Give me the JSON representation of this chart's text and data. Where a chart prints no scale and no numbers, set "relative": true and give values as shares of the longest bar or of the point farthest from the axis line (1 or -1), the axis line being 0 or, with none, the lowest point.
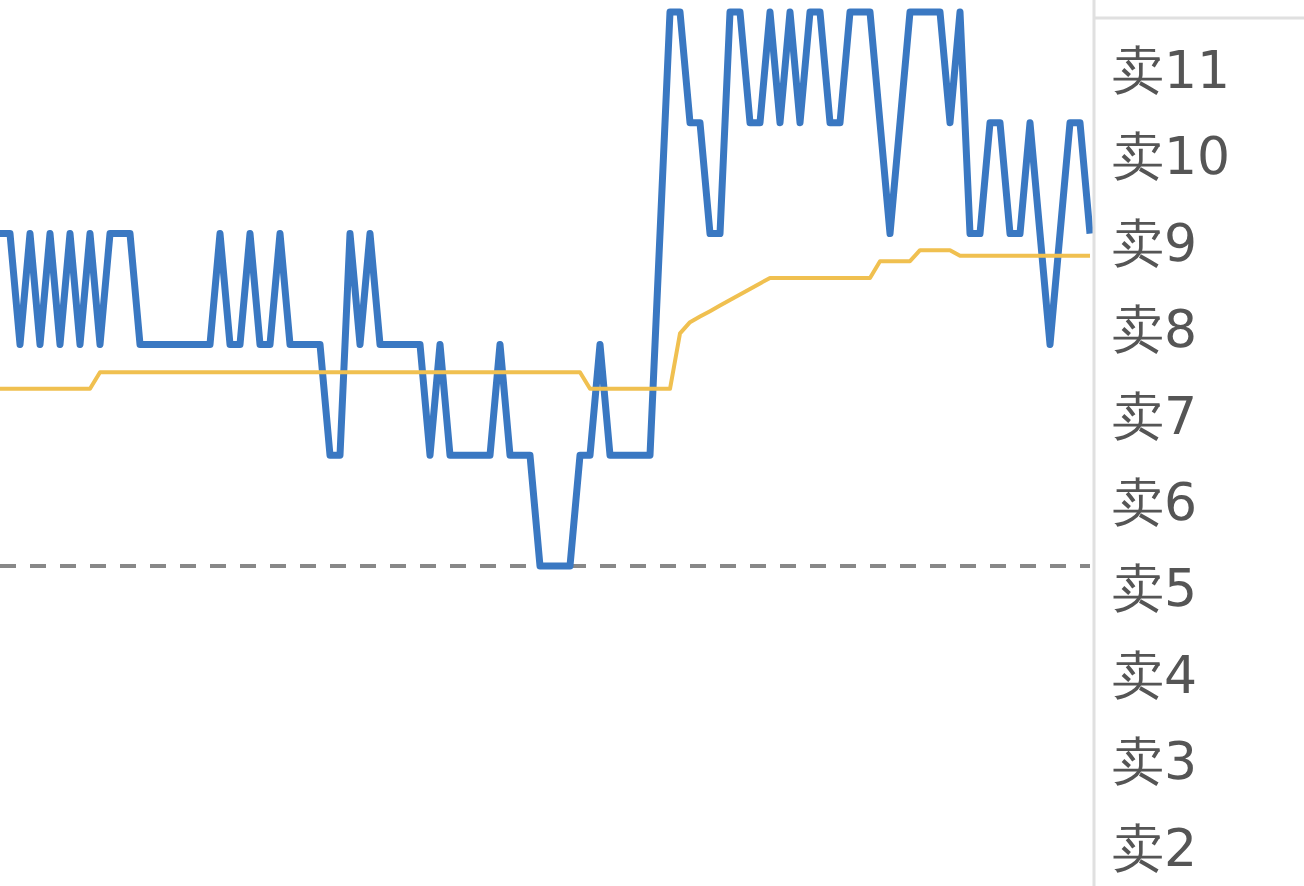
{
  "chart_data": {
    "type": "line",
    "relative": true,
    "categories": [
      null,
      null,
      null,
      null,
      null,
      null,
      null,
      null,
      null,
      null,
      null,
      null,
      null,
      null,
      null,
      null,
      null,
      null,
      null,
      null,
      null,
      null,
      null,
      null,
      null,
      null,
      null,
      null,
      null,
      null,
      null,
      null,
      null,
      null,
      null,
      null,
      null,
      null,
      null,
      null,
      null,
      null,
      null,
      null,
      null,
      null,
      null,
      null,
      null,
      null,
      null,
      null,
      null,
      null,
      null,
      null,
      null,
      null,
      null,
      null,
      null,
      null,
      null,
      null,
      null,
      null,
      null,
      null,
      null,
      null,
      null,
      null,
      null,
      null,
      null,
      null,
      null,
      null,
      null,
      null,
      null,
      null,
      null,
      null,
      null,
      null,
      null,
      null,
      null,
      null,
      null,
      null,
      null,
      null,
      null,
      null,
      null,
      null,
      null,
      null,
      null,
      null,
      null,
      null,
      null,
      null,
      null,
      null,
      null,
      null
    ],
    "series": [
      {
        "color": "#3a78c2",
        "values": [
          0.6,
          0.6,
          0.4,
          0.6,
          0.4,
          0.6,
          0.4,
          0.6,
          0.4,
          0.6,
          0.4,
          0.6,
          0.6,
          0.6,
          0.4,
          0.4,
          0.4,
          0.4,
          0.4,
          0.4,
          0.4,
          0.4,
          0.6,
          0.4,
          0.4,
          0.6,
          0.4,
          0.4,
          0.6,
          0.4,
          0.4,
          0.4,
          0.4,
          0.2,
          0.2,
          0.6,
          0.4,
          0.6,
          0.4,
          0.4,
          0.4,
          0.4,
          0.4,
          0.2,
          0.4,
          0.2,
          0.2,
          0.2,
          0.2,
          0.2,
          0.4,
          0.2,
          0.2,
          0.2,
          0,
          0,
          0,
          0,
          0.2,
          0.2,
          0.4,
          0.2,
          0.2,
          0.2,
          0.2,
          0.2,
          0.6,
          1,
          1,
          0.8,
          0.8,
          0.6,
          0.6,
          1,
          1,
          0.8,
          0.8,
          1,
          0.8,
          1,
          0.8,
          1,
          1,
          0.8,
          0.8,
          1,
          1,
          1,
          0.8,
          0.6,
          0.8,
          1,
          1,
          1,
          1,
          0.8,
          1,
          0.6,
          0.6,
          0.8,
          0.8,
          0.6,
          0.6,
          0.8,
          0.6,
          0.4,
          0.6,
          0.8,
          0.8,
          0.6
        ]
      },
      {
        "color": "#f0c050",
        "values": [
          0.32,
          0.32,
          0.32,
          0.32,
          0.32,
          0.32,
          0.32,
          0.32,
          0.32,
          0.32,
          0.35,
          0.35,
          0.35,
          0.35,
          0.35,
          0.35,
          0.35,
          0.35,
          0.35,
          0.35,
          0.35,
          0.35,
          0.35,
          0.35,
          0.35,
          0.35,
          0.35,
          0.35,
          0.35,
          0.35,
          0.35,
          0.35,
          0.35,
          0.35,
          0.35,
          0.35,
          0.35,
          0.35,
          0.35,
          0.35,
          0.35,
          0.35,
          0.35,
          0.35,
          0.35,
          0.35,
          0.35,
          0.35,
          0.35,
          0.35,
          0.35,
          0.35,
          0.35,
          0.35,
          0.35,
          0.35,
          0.35,
          0.35,
          0.35,
          0.32,
          0.32,
          0.32,
          0.32,
          0.32,
          0.32,
          0.32,
          0.32,
          0.32,
          0.42,
          0.44,
          0.45,
          0.46,
          0.47,
          0.48,
          0.49,
          0.5,
          0.51,
          0.52,
          0.52,
          0.52,
          0.52,
          0.52,
          0.52,
          0.52,
          0.52,
          0.52,
          0.52,
          0.52,
          0.55,
          0.55,
          0.55,
          0.55,
          0.57,
          0.57,
          0.57,
          0.57,
          0.56,
          0.56,
          0.56,
          0.56,
          0.56,
          0.56,
          0.56,
          0.56,
          0.56,
          0.56,
          0.56,
          0.56,
          0.56,
          0.56
        ]
      }
    ],
    "ref_lines": [
      {
        "axis": "y",
        "value": 0,
        "color": "#888888",
        "line_style": "dashed"
      }
    ],
    "annotations": [
      "卖11",
      "卖10",
      "卖9",
      "卖8",
      "卖7",
      "卖6",
      "卖5",
      "卖4",
      "卖3",
      "卖2"
    ]
  }
}
